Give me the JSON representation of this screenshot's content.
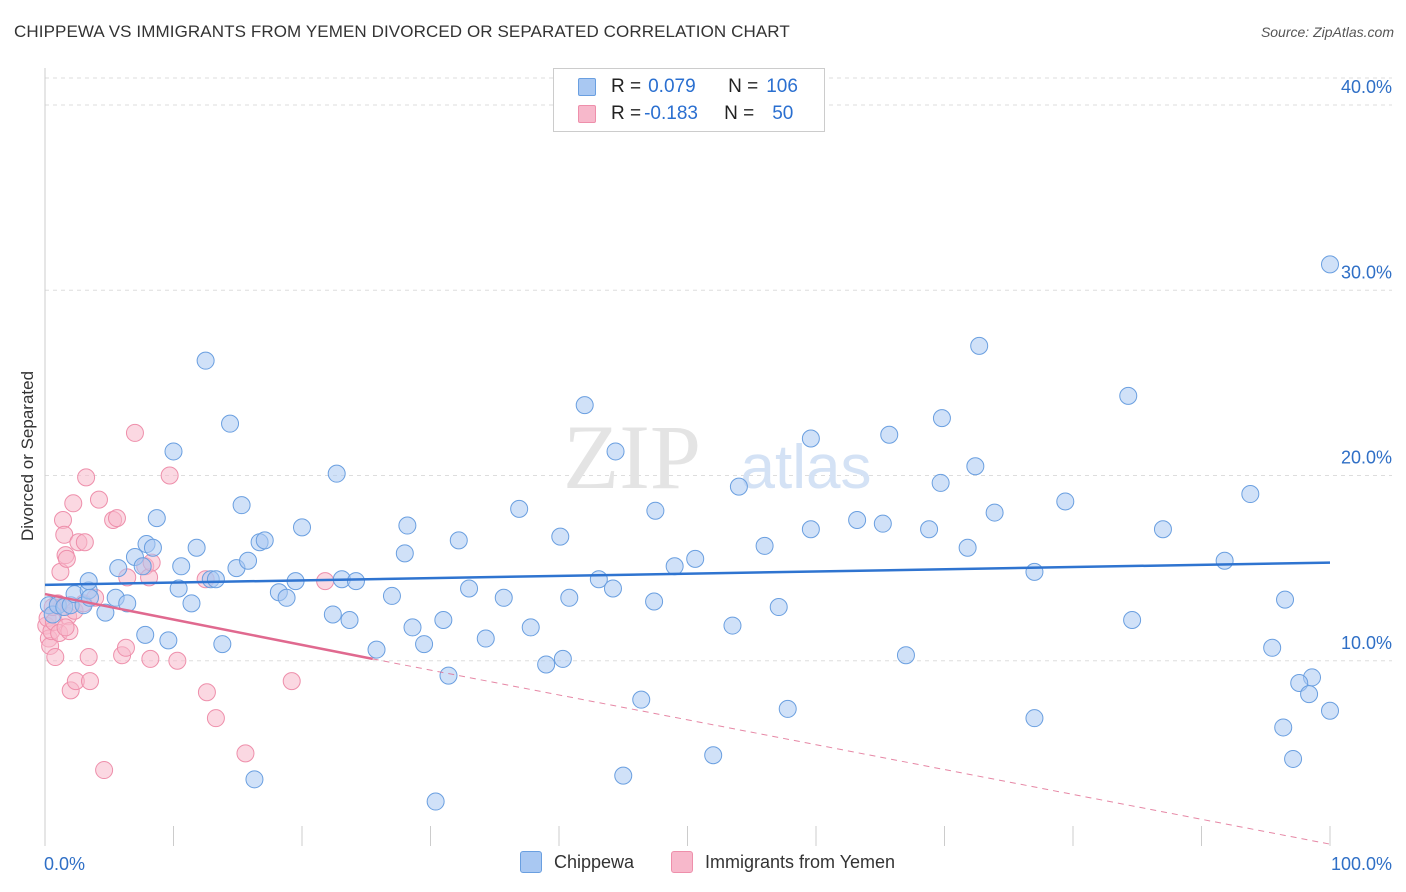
{
  "header": {
    "title": "CHIPPEWA VS IMMIGRANTS FROM YEMEN DIVORCED OR SEPARATED CORRELATION CHART",
    "source": "Source: ZipAtlas.com"
  },
  "watermark": {
    "zip": "ZIP",
    "atlas": "atlas"
  },
  "legend": {
    "rows": [
      {
        "r_label": "R =",
        "r_value": "0.079",
        "n_label": "N =",
        "n_value": "106",
        "color": "#a9c8f2"
      },
      {
        "r_label": "R =",
        "r_value": "-0.183",
        "n_label": "N =",
        "n_value": "50",
        "color": "#f7b8cb"
      }
    ]
  },
  "colors": {
    "chippewa_fill": "#a9c8f2",
    "chippewa_stroke": "#6a9fe0",
    "chippewa_line": "#2f74d0",
    "yemen_fill": "#f7b8cb",
    "yemen_stroke": "#ee8fab",
    "yemen_line": "#e0698f",
    "axis_text": "#2f6fc6"
  },
  "chart_data": {
    "type": "scatter",
    "title": "CHIPPEWA VS IMMIGRANTS FROM YEMEN DIVORCED OR SEPARATED CORRELATION CHART",
    "xlabel": "",
    "ylabel": "Divorced or Separated",
    "xlim": [
      0,
      100
    ],
    "ylim": [
      0,
      42
    ],
    "x_tick_labels": [
      "0.0%",
      "100.0%"
    ],
    "y_ticks": [
      10,
      20,
      30,
      40
    ],
    "y_tick_labels": [
      "10.0%",
      "20.0%",
      "30.0%",
      "40.0%"
    ],
    "grid": true,
    "legend_position": "top-center",
    "series": [
      {
        "name": "Chippewa",
        "r": 0.079,
        "n": 106,
        "trend": {
          "x": [
            0,
            100
          ],
          "y": [
            14.1,
            15.3
          ],
          "dashed_extension": false
        },
        "points": [
          [
            0.3,
            13.0
          ],
          [
            0.6,
            12.5
          ],
          [
            1.0,
            13.0
          ],
          [
            1.5,
            12.9
          ],
          [
            2.0,
            13.0
          ],
          [
            2.3,
            13.6
          ],
          [
            3.0,
            13.0
          ],
          [
            3.4,
            13.8
          ],
          [
            3.5,
            13.4
          ],
          [
            3.4,
            14.3
          ],
          [
            4.7,
            12.6
          ],
          [
            5.5,
            13.4
          ],
          [
            5.7,
            15.0
          ],
          [
            6.4,
            13.1
          ],
          [
            7.0,
            15.6
          ],
          [
            7.6,
            15.1
          ],
          [
            7.8,
            11.4
          ],
          [
            7.9,
            16.3
          ],
          [
            8.4,
            16.1
          ],
          [
            8.7,
            17.7
          ],
          [
            9.6,
            11.1
          ],
          [
            10.0,
            21.3
          ],
          [
            10.4,
            13.9
          ],
          [
            10.6,
            15.1
          ],
          [
            11.4,
            13.1
          ],
          [
            11.8,
            16.1
          ],
          [
            12.5,
            26.2
          ],
          [
            12.9,
            14.4
          ],
          [
            13.3,
            14.4
          ],
          [
            13.8,
            10.9
          ],
          [
            14.4,
            22.8
          ],
          [
            14.9,
            15.0
          ],
          [
            15.3,
            18.4
          ],
          [
            15.8,
            15.4
          ],
          [
            16.3,
            3.6
          ],
          [
            16.7,
            16.4
          ],
          [
            17.1,
            16.5
          ],
          [
            18.2,
            13.7
          ],
          [
            18.8,
            13.4
          ],
          [
            19.5,
            14.3
          ],
          [
            20.0,
            17.2
          ],
          [
            22.4,
            12.5
          ],
          [
            22.7,
            20.1
          ],
          [
            23.1,
            14.4
          ],
          [
            23.7,
            12.2
          ],
          [
            24.2,
            14.3
          ],
          [
            25.8,
            10.6
          ],
          [
            27.0,
            13.5
          ],
          [
            28.0,
            15.8
          ],
          [
            28.2,
            17.3
          ],
          [
            28.6,
            11.8
          ],
          [
            29.5,
            10.9
          ],
          [
            30.4,
            2.4
          ],
          [
            31.0,
            12.2
          ],
          [
            31.4,
            9.2
          ],
          [
            32.2,
            16.5
          ],
          [
            33.0,
            13.9
          ],
          [
            34.3,
            11.2
          ],
          [
            35.7,
            13.4
          ],
          [
            36.9,
            18.2
          ],
          [
            37.8,
            11.8
          ],
          [
            39.0,
            9.8
          ],
          [
            40.1,
            16.7
          ],
          [
            40.3,
            10.1
          ],
          [
            40.8,
            13.4
          ],
          [
            42.0,
            23.8
          ],
          [
            43.1,
            14.4
          ],
          [
            44.2,
            13.9
          ],
          [
            44.4,
            21.3
          ],
          [
            45.0,
            3.8
          ],
          [
            46.4,
            7.9
          ],
          [
            47.4,
            13.2
          ],
          [
            47.5,
            18.1
          ],
          [
            49.0,
            15.1
          ],
          [
            50.6,
            15.5
          ],
          [
            52.0,
            4.9
          ],
          [
            53.5,
            11.9
          ],
          [
            54.0,
            19.4
          ],
          [
            56.0,
            16.2
          ],
          [
            57.1,
            12.9
          ],
          [
            57.8,
            7.4
          ],
          [
            59.6,
            22.0
          ],
          [
            65.2,
            17.4
          ],
          [
            63.2,
            17.6
          ],
          [
            59.6,
            17.1
          ],
          [
            65.7,
            22.2
          ],
          [
            67.0,
            10.3
          ],
          [
            68.8,
            17.1
          ],
          [
            69.7,
            19.6
          ],
          [
            69.8,
            23.1
          ],
          [
            71.8,
            16.1
          ],
          [
            72.4,
            20.5
          ],
          [
            72.7,
            27.0
          ],
          [
            73.9,
            18.0
          ],
          [
            77.0,
            14.8
          ],
          [
            84.6,
            12.2
          ],
          [
            77.0,
            6.9
          ],
          [
            79.4,
            18.6
          ],
          [
            84.3,
            24.3
          ],
          [
            87.0,
            17.1
          ],
          [
            91.8,
            15.4
          ],
          [
            93.8,
            19.0
          ],
          [
            95.5,
            10.7
          ],
          [
            96.5,
            13.3
          ],
          [
            98.6,
            9.1
          ],
          [
            101.9,
            8.8
          ],
          [
            100.0,
            7.3
          ],
          [
            100.6,
            6.4
          ],
          [
            101.4,
            4.7
          ],
          [
            102.7,
            8.2
          ],
          [
            104.4,
            31.4
          ]
        ]
      },
      {
        "name": "Immigrants from Yemen",
        "r": -0.183,
        "n": 50,
        "trend": {
          "x": [
            0,
            25.5
          ],
          "y": [
            13.6,
            10.1
          ],
          "extension_x": [
            25.5,
            100
          ],
          "extension_y": [
            10.1,
            0.1
          ],
          "dashed_extension": true
        },
        "points": [
          [
            0.1,
            11.9
          ],
          [
            0.2,
            12.3
          ],
          [
            0.3,
            11.2
          ],
          [
            0.4,
            10.8
          ],
          [
            0.5,
            11.6
          ],
          [
            0.7,
            12.1
          ],
          [
            0.8,
            10.2
          ],
          [
            1.0,
            13.1
          ],
          [
            1.1,
            11.5
          ],
          [
            1.2,
            14.8
          ],
          [
            1.3,
            12.9
          ],
          [
            1.4,
            17.6
          ],
          [
            1.5,
            16.8
          ],
          [
            1.6,
            15.7
          ],
          [
            1.7,
            15.5
          ],
          [
            1.8,
            12.4
          ],
          [
            1.9,
            11.6
          ],
          [
            2.0,
            8.4
          ],
          [
            2.2,
            18.5
          ],
          [
            2.3,
            12.7
          ],
          [
            2.4,
            8.9
          ],
          [
            2.6,
            16.4
          ],
          [
            3.0,
            13.1
          ],
          [
            3.1,
            16.4
          ],
          [
            3.2,
            19.9
          ],
          [
            3.4,
            10.2
          ],
          [
            3.5,
            8.9
          ],
          [
            3.9,
            13.4
          ],
          [
            4.2,
            18.7
          ],
          [
            4.6,
            4.1
          ],
          [
            5.3,
            17.6
          ],
          [
            5.6,
            17.7
          ],
          [
            6.0,
            10.3
          ],
          [
            6.3,
            10.7
          ],
          [
            6.4,
            14.5
          ],
          [
            7.0,
            22.3
          ],
          [
            7.8,
            15.1
          ],
          [
            8.1,
            14.5
          ],
          [
            8.3,
            15.3
          ],
          [
            8.2,
            10.1
          ],
          [
            9.7,
            20.0
          ],
          [
            10.3,
            10.0
          ],
          [
            12.5,
            14.4
          ],
          [
            12.6,
            8.3
          ],
          [
            13.3,
            6.9
          ],
          [
            15.6,
            5.0
          ],
          [
            19.2,
            8.9
          ],
          [
            21.8,
            14.3
          ],
          [
            0.6,
            12.9
          ],
          [
            1.6,
            11.8
          ]
        ]
      }
    ]
  },
  "bottom_legend": {
    "items": [
      {
        "label": "Chippewa"
      },
      {
        "label": "Immigrants from Yemen"
      }
    ]
  }
}
